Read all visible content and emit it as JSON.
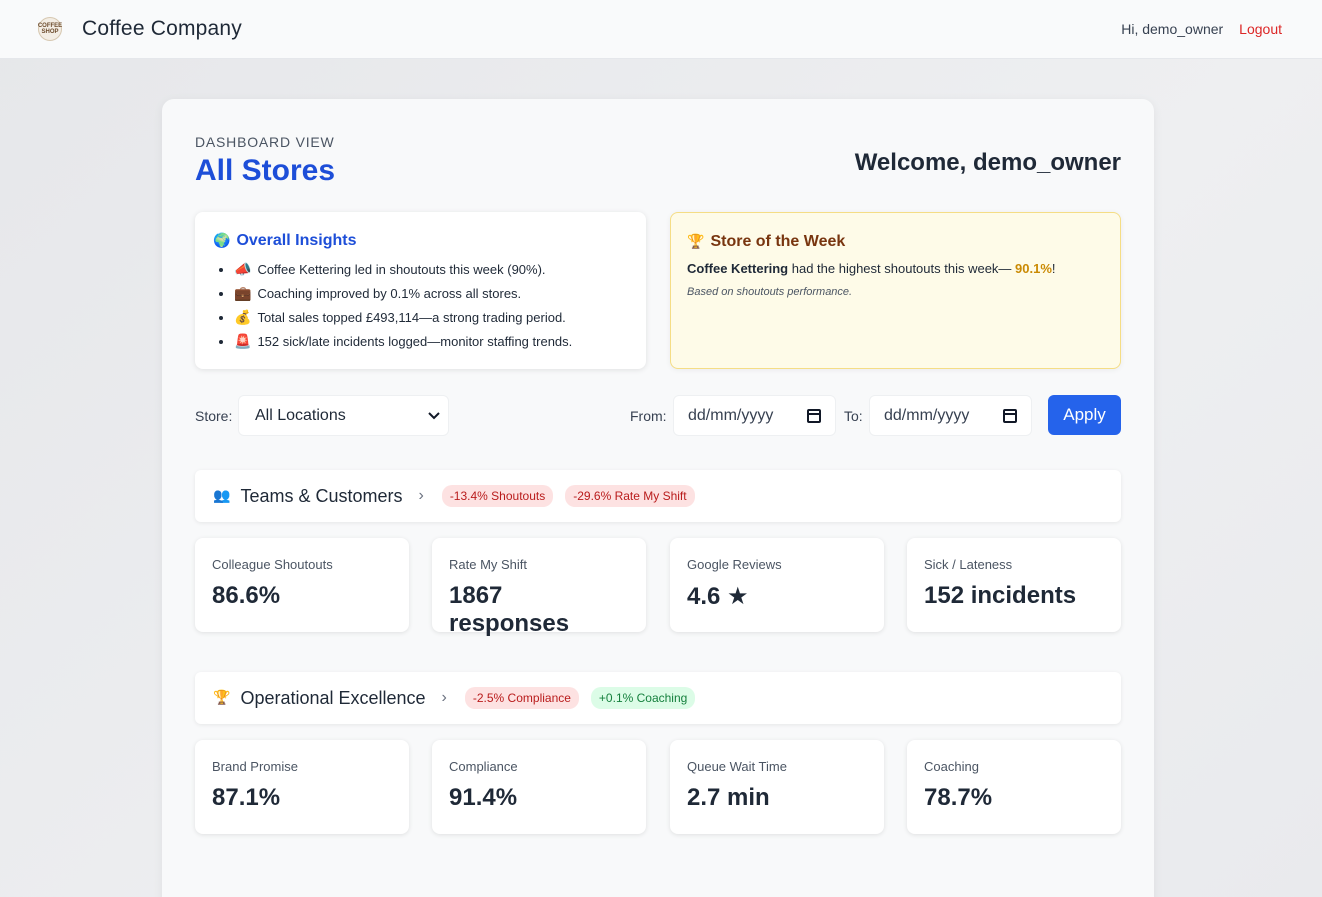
{
  "nav": {
    "logo_text": "COFFEE SHOP",
    "brand": "Coffee Company",
    "greeting": "Hi, demo_owner",
    "logout": "Logout"
  },
  "header": {
    "eyebrow": "DASHBOARD VIEW",
    "title": "All Stores",
    "welcome": "Welcome, demo_owner"
  },
  "insights": {
    "icon": "globe-icon",
    "title": "Overall Insights",
    "items": [
      {
        "icon": "megaphone-icon",
        "text": "Coffee Kettering led in shoutouts this week (90%)."
      },
      {
        "icon": "briefcase-icon",
        "text": "Coaching improved by 0.1% across all stores."
      },
      {
        "icon": "money-bag-icon",
        "text": "Total sales topped £493,114—a strong trading period."
      },
      {
        "icon": "alarm-icon",
        "text": "152 sick/late incidents logged—monitor staffing trends."
      }
    ]
  },
  "store_of_week": {
    "icon": "trophy-icon",
    "title": "Store of the Week",
    "store": "Coffee Kettering",
    "middle": " had the highest shoutouts this week— ",
    "percent": "90.1%",
    "end": "!",
    "note": "Based on shoutouts performance."
  },
  "filters": {
    "store_label": "Store:",
    "store_value": "All Locations",
    "from_label": "From:",
    "from_placeholder": "dd/mm/yyyy",
    "to_label": "To:",
    "to_placeholder": "dd/mm/yyyy",
    "apply": "Apply"
  },
  "sections": [
    {
      "icon": "people-icon",
      "title": "Teams & Customers",
      "badges": [
        {
          "text": "-13.4% Shoutouts",
          "kind": "neg"
        },
        {
          "text": "-29.6% Rate My Shift",
          "kind": "neg"
        }
      ],
      "metrics": [
        {
          "label": "Colleague Shoutouts",
          "value": "86.6%"
        },
        {
          "label": "Rate My Shift",
          "value": "1867 responses"
        },
        {
          "label": "Google Reviews",
          "value": "4.6 ★"
        },
        {
          "label": "Sick / Lateness",
          "value": "152 incidents"
        }
      ]
    },
    {
      "icon": "trophy-icon",
      "title": "Operational Excellence",
      "badges": [
        {
          "text": "-2.5% Compliance",
          "kind": "neg"
        },
        {
          "text": "+0.1% Coaching",
          "kind": "pos"
        }
      ],
      "metrics": [
        {
          "label": "Brand Promise",
          "value": "87.1%"
        },
        {
          "label": "Compliance",
          "value": "91.4%"
        },
        {
          "label": "Queue Wait Time",
          "value": "2.7 min"
        },
        {
          "label": "Coaching",
          "value": "78.7%"
        }
      ]
    }
  ],
  "colors": {
    "accent": "#2563eb",
    "title": "#1d4ed8",
    "logout": "#dc2626",
    "highlight": "#ca8a04"
  }
}
